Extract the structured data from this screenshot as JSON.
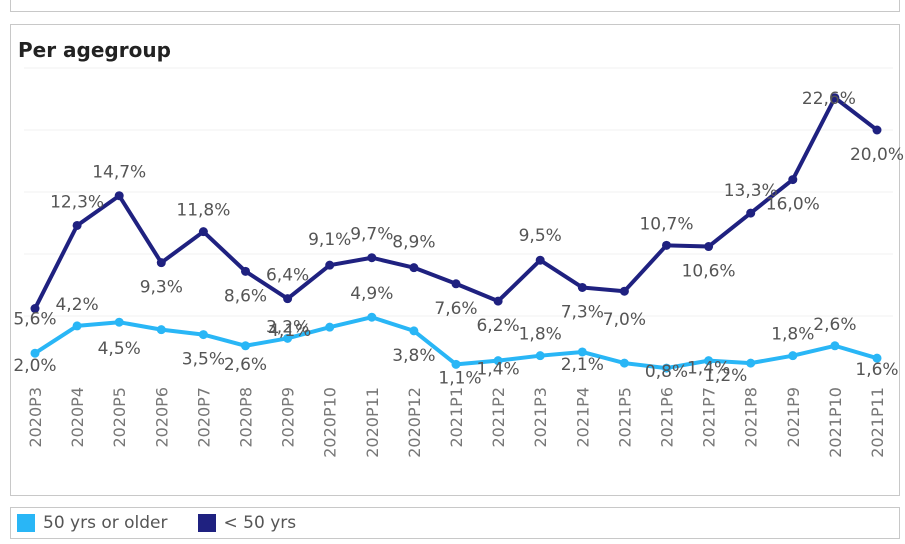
{
  "chart_data": {
    "type": "line",
    "title": "Per agegroup",
    "categories": [
      "2020P3",
      "2020P4",
      "2020P5",
      "2020P6",
      "2020P7",
      "2020P8",
      "2020P9",
      "2020P10",
      "2020P11",
      "2020P12",
      "2021P1",
      "2021P2",
      "2021P3",
      "2021P4",
      "2021P5",
      "2021P6",
      "2021P7",
      "2021P8",
      "2021P9",
      "2021P10",
      "2021P11"
    ],
    "ylim": [
      0,
      25
    ],
    "grid": true,
    "legend_position": "bottom-left",
    "series": [
      {
        "name": "50 yrs or older",
        "color": "#29b6f6",
        "values": [
          2.0,
          4.2,
          4.5,
          3.9,
          3.5,
          2.6,
          3.2,
          4.1,
          4.9,
          3.8,
          1.1,
          1.4,
          1.8,
          2.1,
          1.2,
          0.8,
          1.4,
          1.2,
          1.8,
          2.6,
          1.6
        ],
        "labels": [
          "2,0%",
          "4,2%",
          "4,5%",
          "",
          "3,5%",
          "2,6%",
          "3,2%",
          "4,1%",
          "4,9%",
          "3,8%",
          "1,1%",
          "1,4%",
          "1,8%",
          "2,1%",
          "",
          "0,8%",
          "1,4%",
          "1,2%",
          "1,8%",
          "2,6%",
          "1,6%"
        ]
      },
      {
        "name": "< 50 yrs",
        "color": "#1f2180",
        "values": [
          5.6,
          12.3,
          14.7,
          9.3,
          11.8,
          8.6,
          6.4,
          9.1,
          9.7,
          8.9,
          7.6,
          6.2,
          9.5,
          7.3,
          7.0,
          10.7,
          10.6,
          13.3,
          16.0,
          22.6,
          20.0
        ],
        "labels": [
          "5,6%",
          "12,3%",
          "14,7%",
          "9,3%",
          "11,8%",
          "8,6%",
          "6,4%",
          "9,1%",
          "9,7%",
          "8,9%",
          "7,6%",
          "6,2%",
          "9,5%",
          "7,3%",
          "7,0%",
          "10,7%",
          "10,6%",
          "13,3%",
          "16,0%",
          "22,6%",
          "20,0%"
        ]
      }
    ]
  }
}
